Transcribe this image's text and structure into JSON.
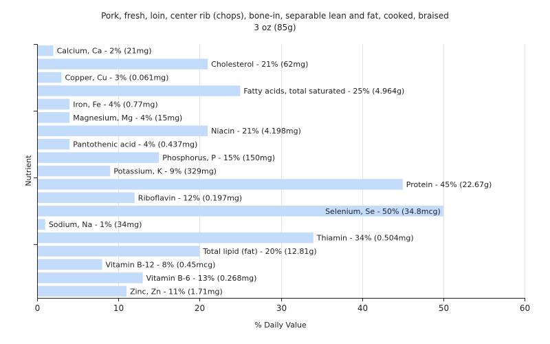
{
  "colors": {
    "bar": "#c4dcfb",
    "grid": "#e4e4e4",
    "axis": "#222222",
    "text": "#222222",
    "background": "#ffffff"
  },
  "chart_data": {
    "type": "bar",
    "orientation": "horizontal",
    "title": "Pork, fresh, loin, center rib (chops), bone-in, separable lean and fat, cooked, braised",
    "subtitle": "3 oz (85g)",
    "xlabel": "% Daily Value",
    "ylabel": "Nutrient",
    "xlim": [
      0,
      60
    ],
    "xticks": [
      0,
      10,
      20,
      30,
      40,
      50,
      60
    ],
    "grid": true,
    "legend": "none",
    "categories": [
      "Calcium, Ca",
      "Cholesterol",
      "Copper, Cu",
      "Fatty acids, total saturated",
      "Iron, Fe",
      "Magnesium, Mg",
      "Niacin",
      "Pantothenic acid",
      "Phosphorus, P",
      "Potassium, K",
      "Protein",
      "Riboflavin",
      "Selenium, Se",
      "Sodium, Na",
      "Thiamin",
      "Total lipid (fat)",
      "Vitamin B-12",
      "Vitamin B-6",
      "Zinc, Zn"
    ],
    "values": [
      2,
      21,
      3,
      25,
      4,
      4,
      21,
      4,
      15,
      9,
      45,
      12,
      50,
      1,
      34,
      20,
      8,
      13,
      11
    ],
    "amounts": [
      "21mg",
      "62mg",
      "0.061mg",
      "4.964g",
      "0.77mg",
      "15mg",
      "4.198mg",
      "0.437mg",
      "150mg",
      "329mg",
      "22.67g",
      "0.197mg",
      "34.8mcg",
      "34mg",
      "0.504mg",
      "12.81g",
      "0.45mcg",
      "0.268mg",
      "1.71mg"
    ],
    "bar_labels": [
      "Calcium, Ca - 2% (21mg)",
      "Cholesterol - 21% (62mg)",
      "Copper, Cu - 3% (0.061mg)",
      "Fatty acids, total saturated - 25% (4.964g)",
      "Iron, Fe - 4% (0.77mg)",
      "Magnesium, Mg - 4% (15mg)",
      "Niacin - 21% (4.198mg)",
      "Pantothenic acid - 4% (0.437mg)",
      "Phosphorus, P - 15% (150mg)",
      "Potassium, K - 9% (329mg)",
      "Protein - 45% (22.67g)",
      "Riboflavin - 12% (0.197mg)",
      "Selenium, Se - 50% (34.8mcg)",
      "Sodium, Na - 1% (34mg)",
      "Thiamin - 34% (0.504mg)",
      "Total lipid (fat) - 20% (12.81g)",
      "Vitamin B-12 - 8% (0.45mcg)",
      "Vitamin B-6 - 13% (0.268mg)",
      "Zinc, Zn - 11% (1.71mg)"
    ]
  }
}
